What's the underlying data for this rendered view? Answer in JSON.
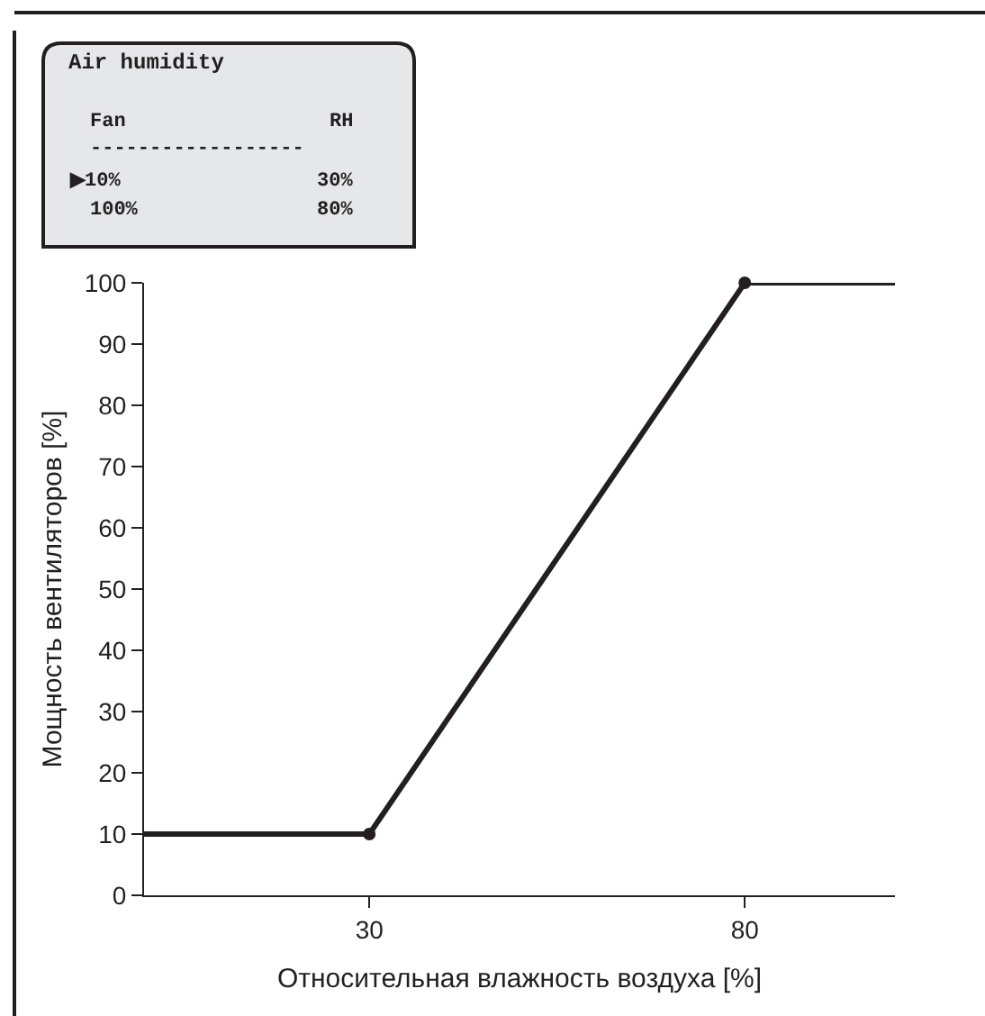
{
  "chart_data": {
    "type": "line",
    "xlabel": "Относительная влажность воздуха [%]",
    "ylabel": "Мощность вентиляторов [%]",
    "x": [
      0,
      30,
      80,
      100
    ],
    "series": [
      {
        "color": "#231f20",
        "values": [
          10,
          10,
          100,
          100
        ],
        "marker": "none",
        "line_style": "solid"
      },
      {
        "type": "scatter",
        "color": "#231f20",
        "x": [
          30,
          80
        ],
        "values": [
          10,
          100
        ],
        "marker": "circle"
      }
    ],
    "xlim": [
      0,
      100
    ],
    "xticks": [
      30,
      80
    ],
    "ylim": [
      0,
      100
    ],
    "yticks": [
      0,
      10,
      20,
      30,
      40,
      50,
      60,
      70,
      80,
      90,
      100
    ],
    "annotations": [
      "Air humidity",
      "Fan",
      "RH",
      "------------------",
      "▶10%",
      "30%",
      "100%",
      "80%"
    ]
  }
}
